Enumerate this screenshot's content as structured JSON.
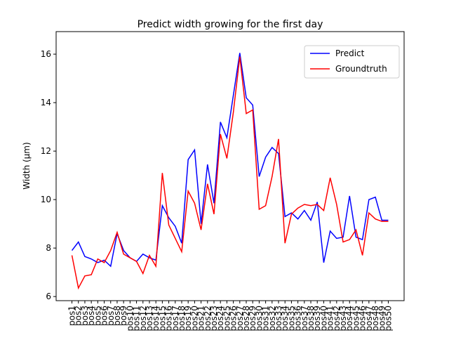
{
  "chart_data": {
    "type": "line",
    "title": "Predict width growing for the first day",
    "y_label": "Width (μm)",
    "categories": [
      "pos1",
      "pos2",
      "pos3",
      "pos4",
      "pos5",
      "pos6",
      "pos7",
      "pos8",
      "pos9",
      "pos10",
      "pos11",
      "pos12",
      "pos13",
      "pos14",
      "pos15",
      "pos16",
      "pos17",
      "pos18",
      "pos19",
      "pos20",
      "pos21",
      "pos22",
      "pos23",
      "pos24",
      "pos25",
      "pos26",
      "pos27",
      "pos28",
      "pos29",
      "pos30",
      "pos31",
      "pos32",
      "pos33",
      "pos34",
      "pos35",
      "pos36",
      "pos37",
      "pos38",
      "pos39",
      "pos40",
      "pos41",
      "pos42",
      "pos43",
      "pos44",
      "pos45",
      "pos46",
      "pos47",
      "pos48",
      "pos49",
      "pos50"
    ],
    "series": [
      {
        "name": "Predict",
        "color": "#0000ff",
        "values": [
          7.9,
          8.25,
          7.65,
          7.55,
          7.4,
          7.5,
          7.25,
          8.6,
          7.9,
          7.6,
          7.45,
          7.75,
          7.6,
          7.5,
          9.75,
          9.25,
          8.9,
          8.2,
          11.65,
          12.05,
          9.0,
          11.45,
          9.85,
          13.2,
          12.55,
          14.3,
          16.05,
          14.2,
          13.9,
          10.95,
          11.75,
          12.15,
          11.9,
          9.3,
          9.45,
          9.2,
          9.55,
          9.15,
          9.9,
          7.4,
          8.7,
          8.4,
          8.45,
          10.15,
          8.45,
          8.35,
          10.0,
          10.1,
          9.15,
          9.15
        ]
      },
      {
        "name": "Groundtruth",
        "color": "#ff0000",
        "values": [
          7.7,
          6.35,
          6.85,
          6.9,
          7.55,
          7.4,
          7.9,
          8.65,
          7.75,
          7.6,
          7.45,
          6.95,
          7.7,
          7.25,
          11.1,
          8.95,
          8.4,
          7.85,
          10.35,
          9.85,
          8.75,
          10.65,
          9.4,
          12.7,
          11.7,
          13.6,
          15.9,
          13.55,
          13.7,
          9.6,
          9.75,
          10.95,
          12.5,
          8.2,
          9.4,
          9.65,
          9.8,
          9.75,
          9.8,
          9.55,
          10.9,
          9.8,
          8.25,
          8.35,
          8.75,
          7.7,
          9.45,
          9.2,
          9.1,
          9.1
        ]
      }
    ],
    "ylim": [
      5.83,
      16.93
    ],
    "yticks": [
      6,
      8,
      10,
      12,
      14,
      16
    ],
    "legend": "upper right"
  }
}
